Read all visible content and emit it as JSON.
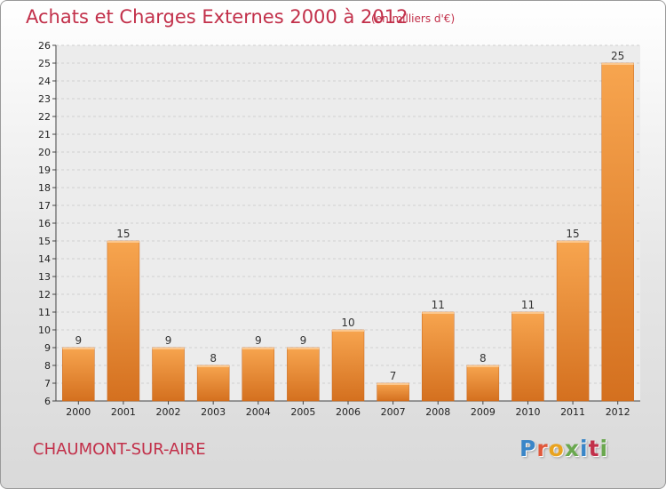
{
  "title": "Achats et Charges Externes 2000 à 2012",
  "unit": "(en milliers d'€)",
  "commune": "CHAUMONT-SUR-AIRE",
  "logo": {
    "letters": [
      "P",
      "r",
      "o",
      "x",
      "i",
      "t",
      "i"
    ],
    "colors": [
      "#3a86c8",
      "#e0583b",
      "#e9a31f",
      "#6aa84f",
      "#3a86c8",
      "#c2304a",
      "#6aa84f"
    ]
  },
  "colors": {
    "accent": "#c2304a",
    "bar_top": "#f7a54f",
    "bar_bottom": "#d4701f"
  },
  "chart_data": {
    "type": "bar",
    "title": "Achats et Charges Externes 2000 à 2012",
    "categories": [
      "2000",
      "2001",
      "2002",
      "2003",
      "2004",
      "2005",
      "2006",
      "2007",
      "2008",
      "2009",
      "2010",
      "2011",
      "2012"
    ],
    "values": [
      9,
      15,
      9,
      8,
      9,
      9,
      10,
      7,
      11,
      8,
      11,
      15,
      25
    ],
    "data_labels": [
      "9",
      "15",
      "9",
      "8",
      "9",
      "9",
      "10",
      "7",
      "11",
      "8",
      "11",
      "15",
      "25"
    ],
    "xlabel": "",
    "ylabel": "",
    "ylim": [
      6,
      26
    ],
    "yticks": [
      "6",
      "7",
      "8",
      "9",
      "10",
      "11",
      "12",
      "13",
      "14",
      "15",
      "16",
      "17",
      "18",
      "19",
      "20",
      "21",
      "22",
      "23",
      "24",
      "25",
      "26"
    ],
    "grid": true
  }
}
